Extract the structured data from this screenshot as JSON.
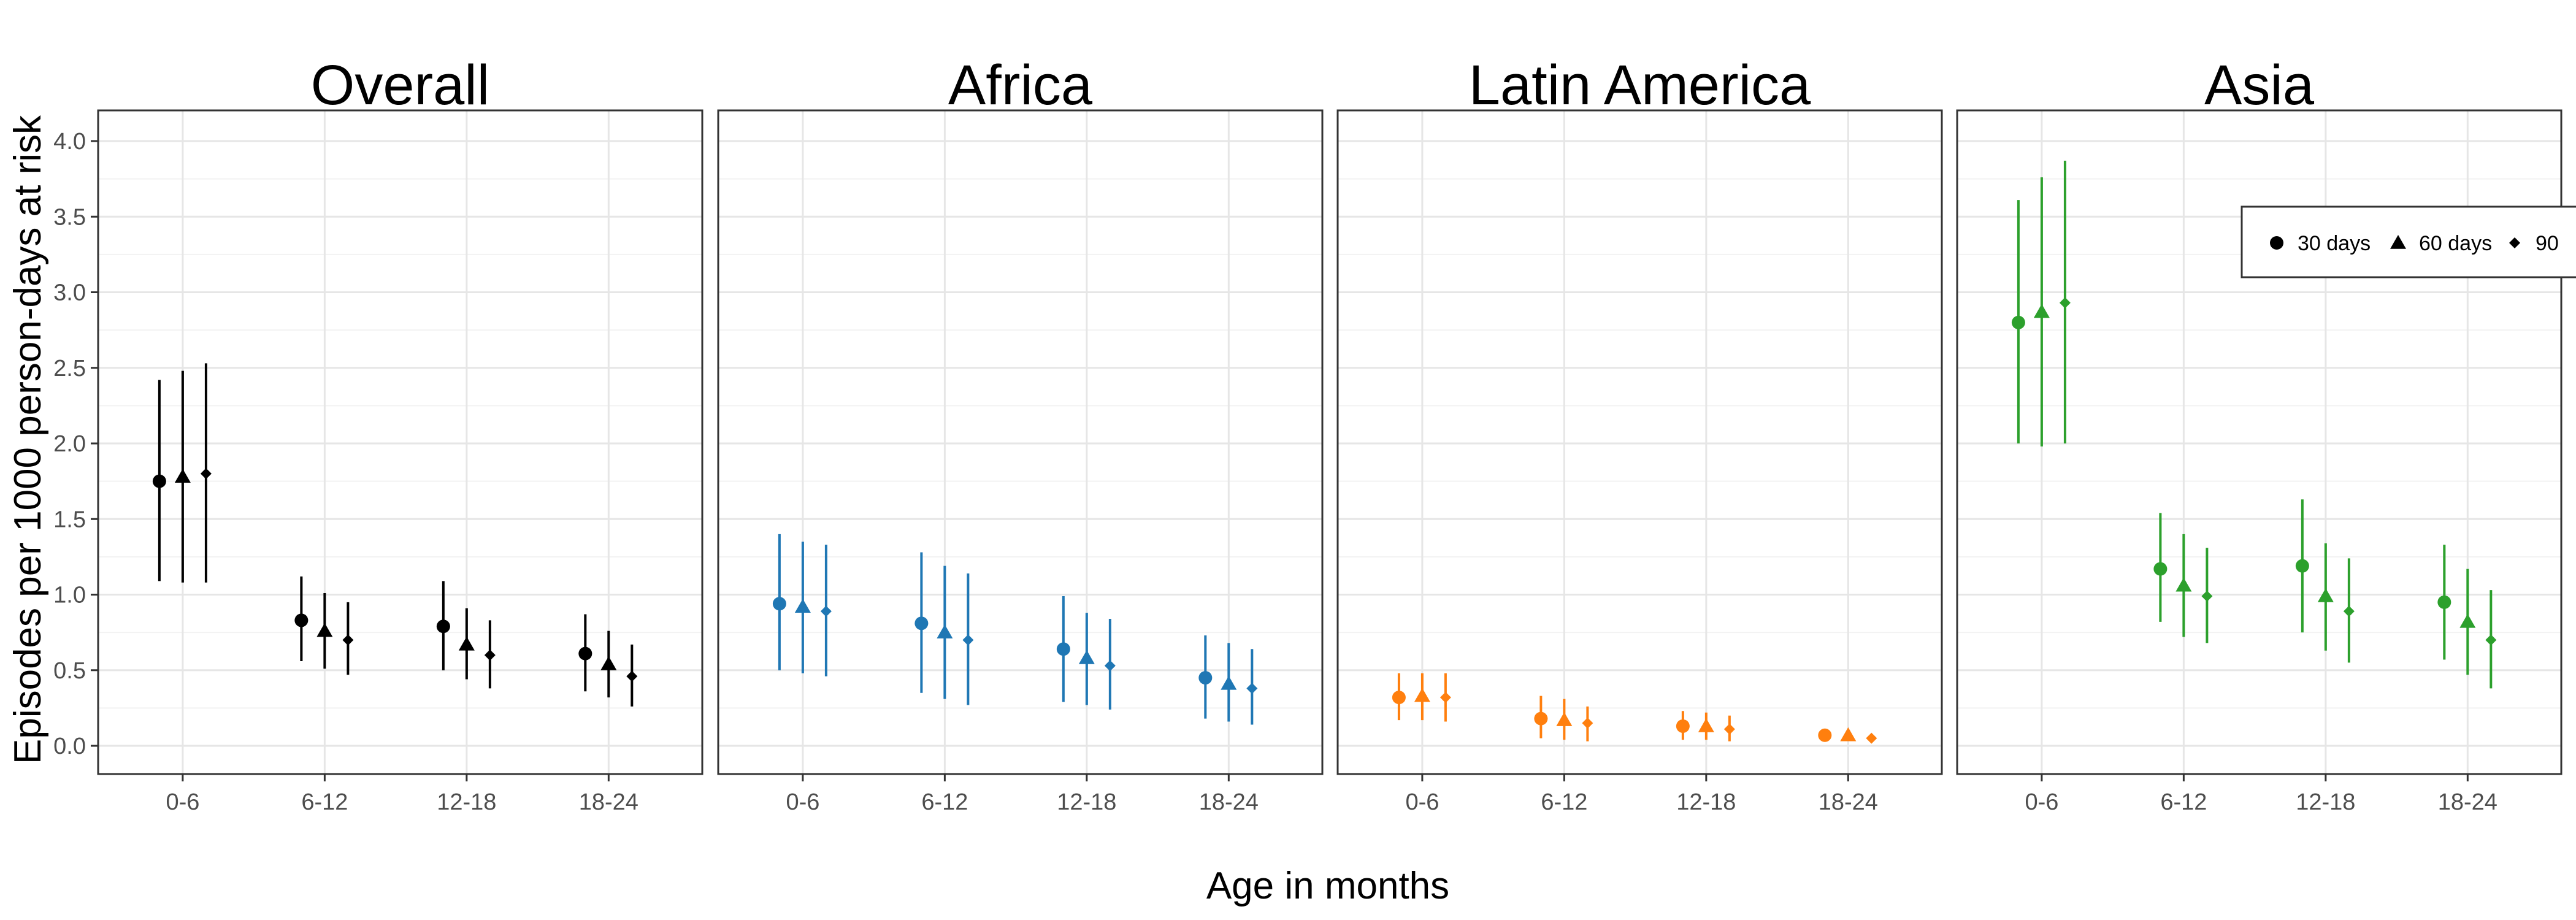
{
  "chart_data": {
    "type": "scatter",
    "description_kind": "point estimates with error bars, faceted by region",
    "xlabel": "Age in months",
    "ylabel": "Episodes per 1000 person-days at risk",
    "categories": [
      "0-6",
      "6-12",
      "12-18",
      "18-24"
    ],
    "ylim": [
      -0.18,
      4.2
    ],
    "yticks": [
      0.0,
      0.5,
      1.0,
      1.5,
      2.0,
      2.5,
      3.0,
      3.5,
      4.0
    ],
    "ytick_labels": [
      "0.0",
      "0.5",
      "1.0",
      "1.5",
      "2.0",
      "2.5",
      "3.0",
      "3.5",
      "4.0"
    ],
    "grid": true,
    "legend": {
      "placement": "right (inside Asia panel, clipped at image edge)",
      "items": [
        {
          "label": "30 days",
          "shape": "circle"
        },
        {
          "label": "60 days",
          "shape": "triangle"
        },
        {
          "label": "90",
          "shape": "diamond"
        }
      ]
    },
    "panels": [
      {
        "title": "Overall",
        "color": "#000000",
        "series": [
          {
            "window": "30 days",
            "shape": "circle",
            "values": [
              1.75,
              0.83,
              0.79,
              0.61
            ],
            "lower": [
              1.09,
              0.56,
              0.5,
              0.36
            ],
            "upper": [
              2.42,
              1.12,
              1.09,
              0.87
            ]
          },
          {
            "window": "60 days",
            "shape": "triangle",
            "values": [
              1.78,
              0.76,
              0.67,
              0.54
            ],
            "lower": [
              1.08,
              0.51,
              0.44,
              0.32
            ],
            "upper": [
              2.48,
              1.01,
              0.91,
              0.76
            ]
          },
          {
            "window": "90",
            "shape": "diamond",
            "values": [
              1.8,
              0.7,
              0.6,
              0.46
            ],
            "lower": [
              1.08,
              0.47,
              0.38,
              0.26
            ],
            "upper": [
              2.53,
              0.95,
              0.83,
              0.67
            ]
          }
        ]
      },
      {
        "title": "Africa",
        "color": "#1f77b4",
        "series": [
          {
            "window": "30 days",
            "shape": "circle",
            "values": [
              0.94,
              0.81,
              0.64,
              0.45
            ],
            "lower": [
              0.5,
              0.35,
              0.29,
              0.18
            ],
            "upper": [
              1.4,
              1.28,
              0.99,
              0.73
            ]
          },
          {
            "window": "60 days",
            "shape": "triangle",
            "values": [
              0.92,
              0.75,
              0.58,
              0.41
            ],
            "lower": [
              0.48,
              0.31,
              0.27,
              0.16
            ],
            "upper": [
              1.35,
              1.19,
              0.88,
              0.68
            ]
          },
          {
            "window": "90",
            "shape": "diamond",
            "values": [
              0.89,
              0.7,
              0.53,
              0.38
            ],
            "lower": [
              0.46,
              0.27,
              0.24,
              0.14
            ],
            "upper": [
              1.33,
              1.14,
              0.84,
              0.64
            ]
          }
        ]
      },
      {
        "title": "Latin America",
        "color": "#ff7f0e",
        "series": [
          {
            "window": "30 days",
            "shape": "circle",
            "values": [
              0.32,
              0.18,
              0.13,
              0.07
            ],
            "lower": [
              0.17,
              0.05,
              0.04,
              0.06
            ],
            "upper": [
              0.48,
              0.33,
              0.23,
              0.08
            ]
          },
          {
            "window": "60 days",
            "shape": "triangle",
            "values": [
              0.33,
              0.17,
              0.13,
              0.07
            ],
            "lower": [
              0.17,
              0.04,
              0.04,
              0.06
            ],
            "upper": [
              0.48,
              0.31,
              0.22,
              0.08
            ]
          },
          {
            "window": "90",
            "shape": "diamond",
            "values": [
              0.32,
              0.15,
              0.11,
              0.05
            ],
            "lower": [
              0.16,
              0.03,
              0.03,
              0.04
            ],
            "upper": [
              0.48,
              0.26,
              0.2,
              0.06
            ]
          }
        ]
      },
      {
        "title": "Asia",
        "color": "#2ca02c",
        "series": [
          {
            "window": "30 days",
            "shape": "circle",
            "values": [
              2.8,
              1.17,
              1.19,
              0.95
            ],
            "lower": [
              2.0,
              0.82,
              0.75,
              0.57
            ],
            "upper": [
              3.61,
              1.54,
              1.63,
              1.33
            ]
          },
          {
            "window": "60 days",
            "shape": "triangle",
            "values": [
              2.87,
              1.06,
              0.99,
              0.82
            ],
            "lower": [
              1.98,
              0.72,
              0.63,
              0.47
            ],
            "upper": [
              3.76,
              1.4,
              1.34,
              1.17
            ]
          },
          {
            "window": "90",
            "shape": "diamond",
            "values": [
              2.93,
              0.99,
              0.89,
              0.7
            ],
            "lower": [
              2.0,
              0.68,
              0.55,
              0.38
            ],
            "upper": [
              3.87,
              1.31,
              1.24,
              1.03
            ]
          }
        ]
      }
    ]
  }
}
